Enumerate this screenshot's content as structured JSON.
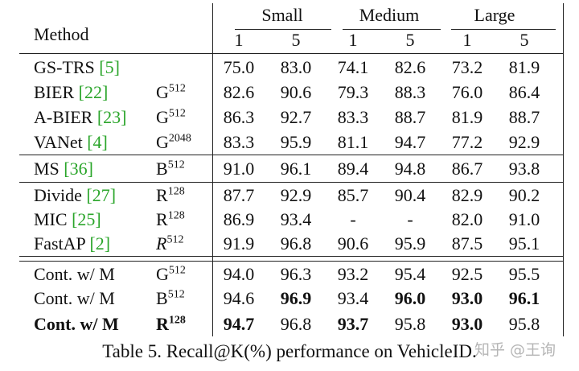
{
  "header": {
    "method": "Method",
    "groups": [
      "Small",
      "Medium",
      "Large"
    ],
    "sub": [
      "1",
      "5",
      "1",
      "5",
      "1",
      "5"
    ]
  },
  "rows": [
    {
      "name": "GS-TRS",
      "ref": "[5]",
      "emb": "",
      "sup": "",
      "vals": [
        "75.0",
        "83.0",
        "74.1",
        "82.6",
        "73.2",
        "81.9"
      ]
    },
    {
      "name": "BIER",
      "ref": "[22]",
      "emb": "G",
      "sup": "512",
      "vals": [
        "82.6",
        "90.6",
        "79.3",
        "88.3",
        "76.0",
        "86.4"
      ]
    },
    {
      "name": "A-BIER",
      "ref": "[23]",
      "emb": "G",
      "sup": "512",
      "vals": [
        "86.3",
        "92.7",
        "83.3",
        "88.7",
        "81.9",
        "88.7"
      ]
    },
    {
      "name": "VANet",
      "ref": "[4]",
      "emb": "G",
      "sup": "2048",
      "vals": [
        "83.3",
        "95.9",
        "81.1",
        "94.7",
        "77.2",
        "92.9"
      ]
    },
    {
      "name": "MS",
      "ref": "[36]",
      "emb": "B",
      "sup": "512",
      "vals": [
        "91.0",
        "96.1",
        "89.4",
        "94.8",
        "86.7",
        "93.8"
      ]
    },
    {
      "name": "Divide",
      "ref": "[27]",
      "emb": "R",
      "sup": "128",
      "vals": [
        "87.7",
        "92.9",
        "85.7",
        "90.4",
        "82.9",
        "90.2"
      ]
    },
    {
      "name": "MIC",
      "ref": "[25]",
      "emb": "R",
      "sup": "128",
      "vals": [
        "86.9",
        "93.4",
        "-",
        "-",
        "82.0",
        "91.0"
      ]
    },
    {
      "name": "FastAP",
      "ref": "[2]",
      "emb": "R",
      "sup": "512",
      "vals": [
        "91.9",
        "96.8",
        "90.6",
        "95.9",
        "87.5",
        "95.1"
      ]
    },
    {
      "name": "Cont. w/ M",
      "ref": "",
      "emb": "G",
      "sup": "512",
      "vals": [
        "94.0",
        "96.3",
        "93.2",
        "95.4",
        "92.5",
        "95.5"
      ]
    },
    {
      "name": "Cont. w/ M",
      "ref": "",
      "emb": "B",
      "sup": "512",
      "vals": [
        "94.6",
        "96.9",
        "93.4",
        "96.0",
        "93.0",
        "96.1"
      ]
    },
    {
      "name": "Cont. w/ M",
      "ref": "",
      "emb": "R",
      "sup": "128",
      "vals": [
        "94.7",
        "96.8",
        "93.7",
        "95.8",
        "93.0",
        "95.8"
      ]
    }
  ],
  "caption": "Table 5. Recall@K(%) performance on VehicleID.",
  "watermark": "知乎 @王询"
}
